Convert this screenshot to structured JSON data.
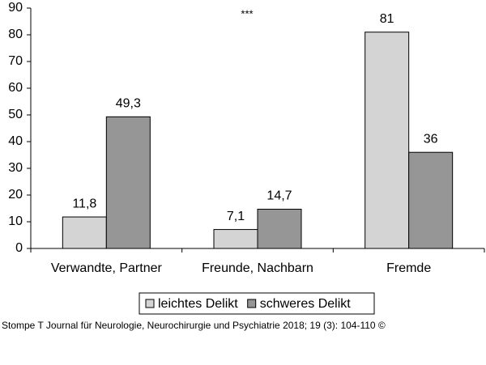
{
  "chart_data": {
    "type": "bar",
    "annotation": "***",
    "categories": [
      "Verwandte, Partner",
      "Freunde, Nachbarn",
      "Fremde"
    ],
    "series": [
      {
        "name": "leichtes Delikt",
        "color": "#d4d4d4",
        "values": [
          11.8,
          7.1,
          81
        ],
        "value_labels": [
          "11,8",
          "7,1",
          "81"
        ]
      },
      {
        "name": "schweres Delikt",
        "color": "#969696",
        "values": [
          49.3,
          14.7,
          36
        ],
        "value_labels": [
          "49,3",
          "14,7",
          "36"
        ]
      }
    ],
    "ylim": [
      0,
      90
    ],
    "yticks": [
      0,
      10,
      20,
      30,
      40,
      50,
      60,
      70,
      80,
      90
    ],
    "grid": false,
    "legend": "bottom",
    "source": "Stompe T Journal für Neurologie, Neurochirurgie und Psychiatrie 2018; 19 (3): 104-110 ©"
  }
}
